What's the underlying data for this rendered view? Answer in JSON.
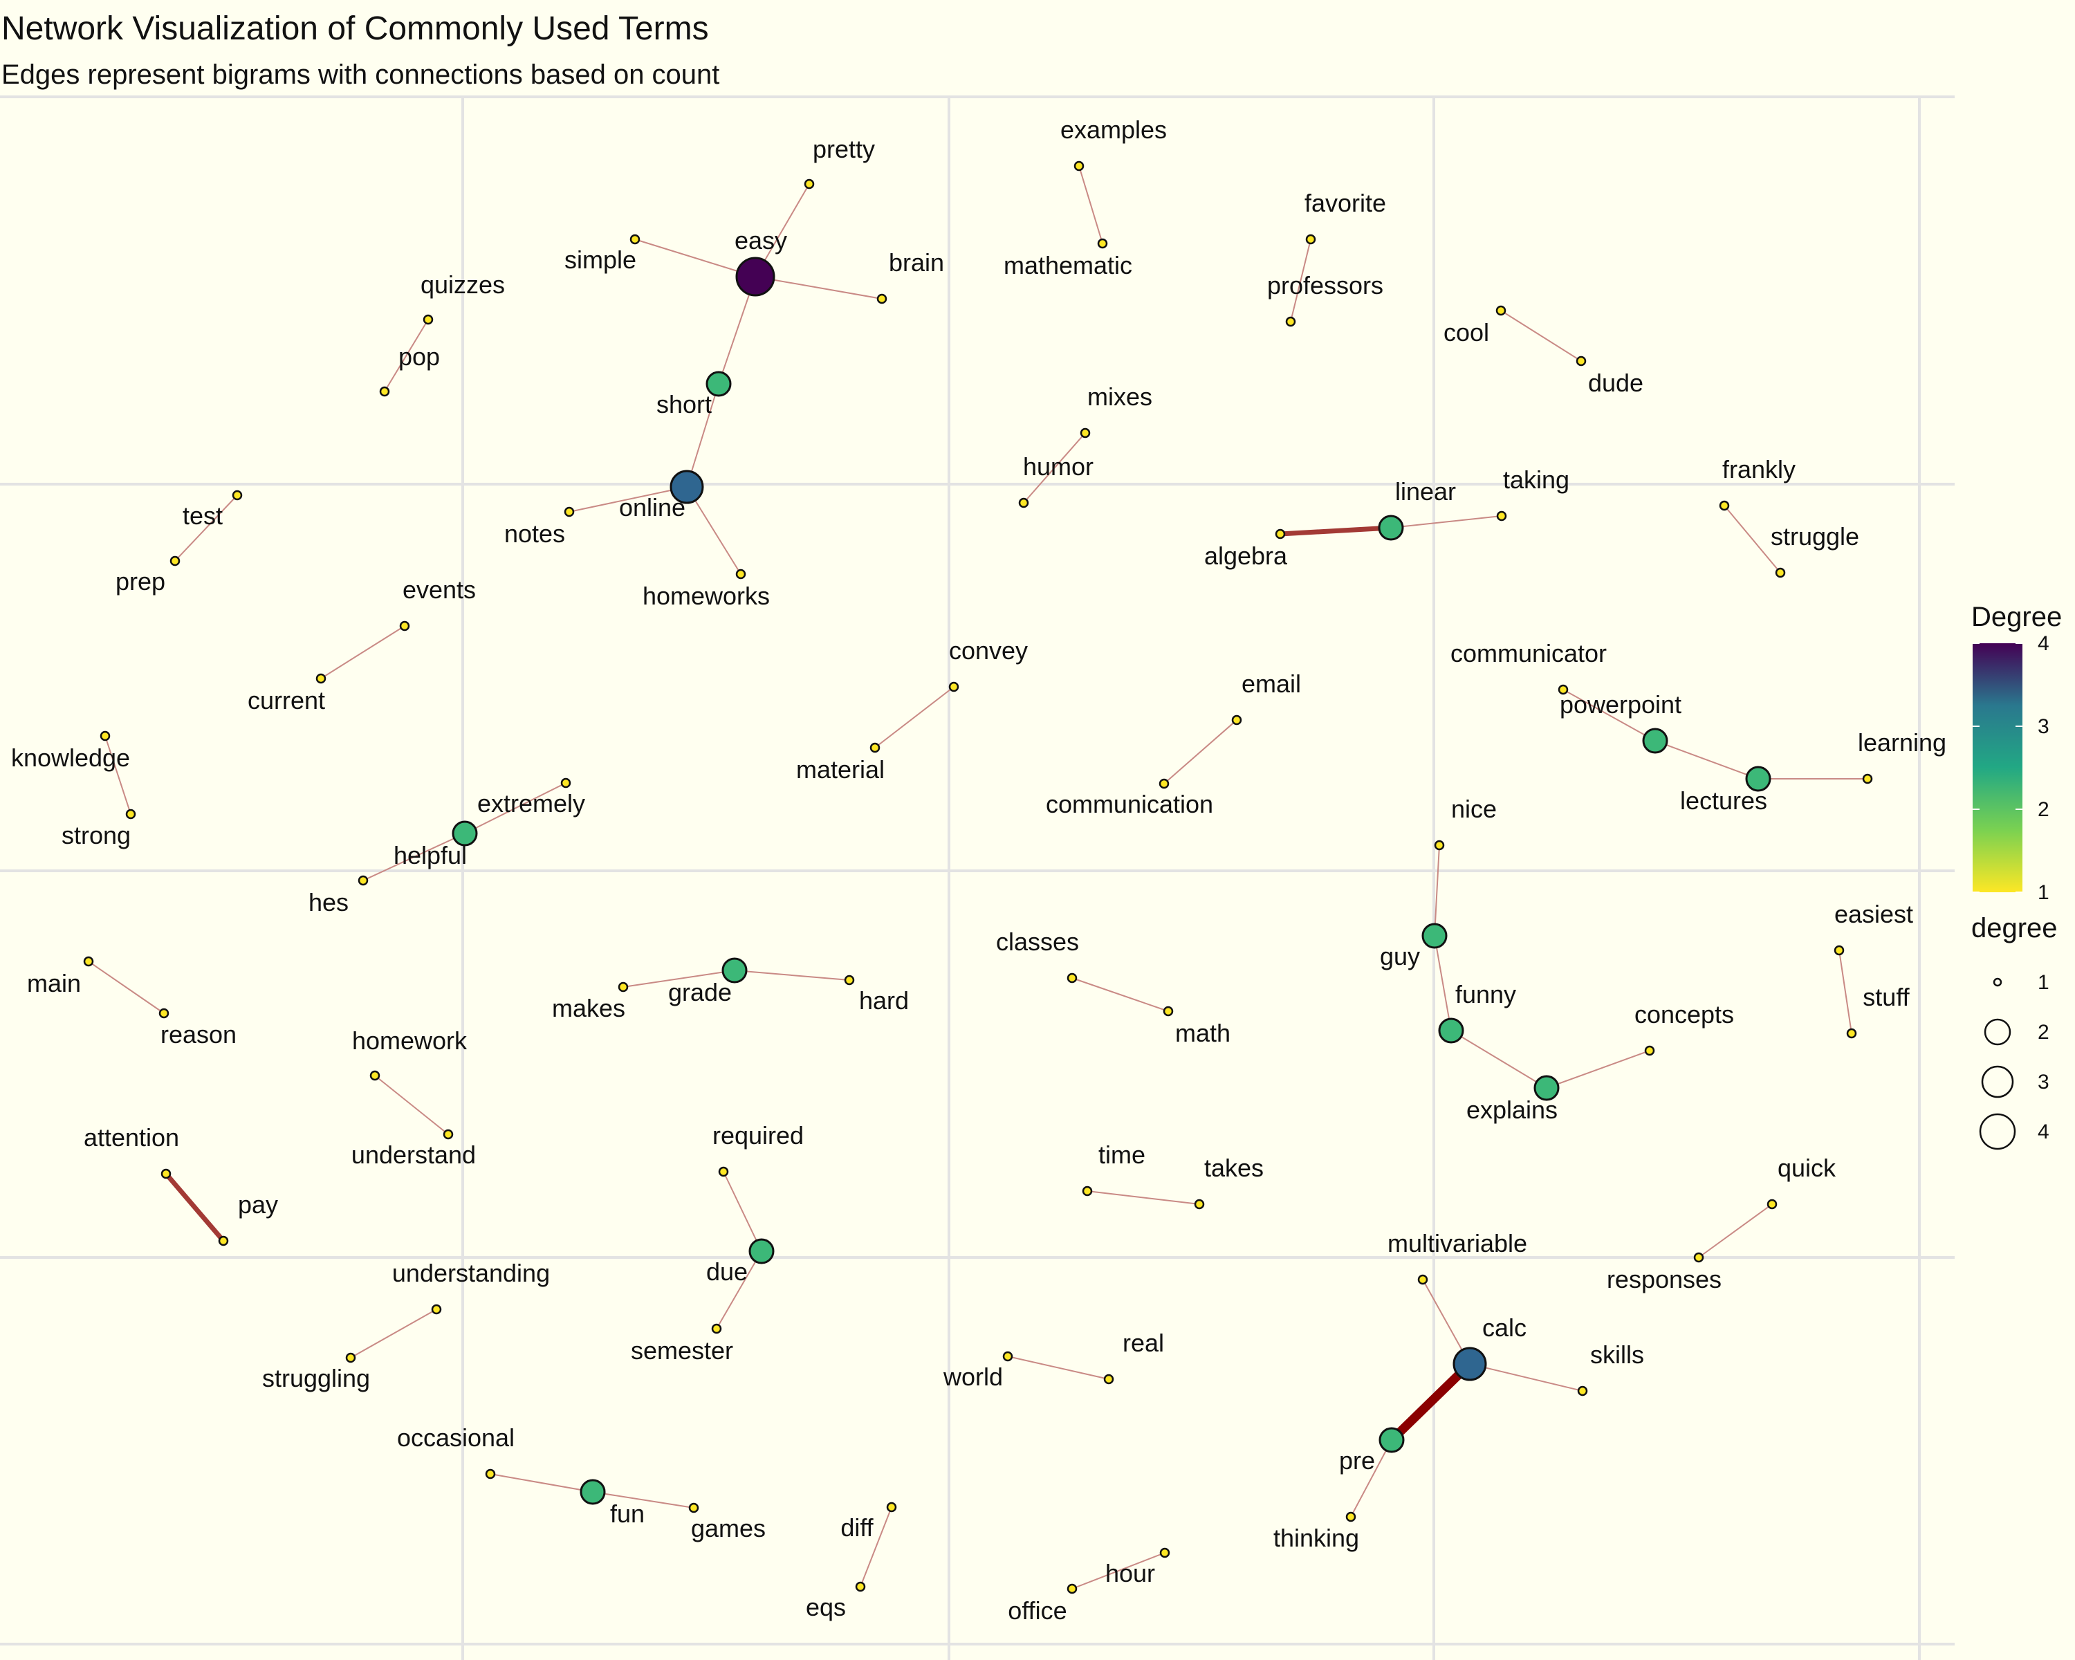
{
  "header": {
    "title": "Network Visualization of Commonly Used Terms",
    "subtitle": "Edges represent bigrams with connections based on count"
  },
  "legend": {
    "color_title": "Degree",
    "color_ticks": [
      "4",
      "3",
      "2",
      "1"
    ],
    "size_title": "degree",
    "size_ticks": [
      "1",
      "2",
      "3",
      "4"
    ],
    "colors": {
      "1": "#fde725",
      "2": "#3cb878",
      "3": "#2f6690",
      "4": "#440154"
    }
  },
  "graph": {
    "nodes": [
      {
        "id": "easy",
        "label": "easy",
        "degree": 4
      },
      {
        "id": "pretty",
        "label": "pretty",
        "degree": 1
      },
      {
        "id": "simple",
        "label": "simple",
        "degree": 1
      },
      {
        "id": "brain",
        "label": "brain",
        "degree": 1
      },
      {
        "id": "short",
        "label": "short",
        "degree": 2
      },
      {
        "id": "online",
        "label": "online",
        "degree": 3
      },
      {
        "id": "notes",
        "label": "notes",
        "degree": 1
      },
      {
        "id": "homeworks",
        "label": "homeworks",
        "degree": 1
      },
      {
        "id": "quizzes",
        "label": "quizzes",
        "degree": 1
      },
      {
        "id": "pop",
        "label": "pop",
        "degree": 1
      },
      {
        "id": "examples",
        "label": "examples",
        "degree": 1
      },
      {
        "id": "mathematic",
        "label": "mathematic",
        "degree": 1
      },
      {
        "id": "favorite",
        "label": "favorite",
        "degree": 1
      },
      {
        "id": "professors",
        "label": "professors",
        "degree": 1
      },
      {
        "id": "cool",
        "label": "cool",
        "degree": 1
      },
      {
        "id": "dude",
        "label": "dude",
        "degree": 1
      },
      {
        "id": "mixes",
        "label": "mixes",
        "degree": 1
      },
      {
        "id": "humor",
        "label": "humor",
        "degree": 1
      },
      {
        "id": "test",
        "label": "test",
        "degree": 1
      },
      {
        "id": "prep",
        "label": "prep",
        "degree": 1
      },
      {
        "id": "linear",
        "label": "linear",
        "degree": 2
      },
      {
        "id": "algebra",
        "label": "algebra",
        "degree": 1
      },
      {
        "id": "taking",
        "label": "taking",
        "degree": 1
      },
      {
        "id": "frankly",
        "label": "frankly",
        "degree": 1
      },
      {
        "id": "struggle",
        "label": "struggle",
        "degree": 1
      },
      {
        "id": "events",
        "label": "events",
        "degree": 1
      },
      {
        "id": "current",
        "label": "current",
        "degree": 1
      },
      {
        "id": "convey",
        "label": "convey",
        "degree": 1
      },
      {
        "id": "material",
        "label": "material",
        "degree": 1
      },
      {
        "id": "email",
        "label": "email",
        "degree": 1
      },
      {
        "id": "communication",
        "label": "communication",
        "degree": 1
      },
      {
        "id": "communicator",
        "label": "communicator",
        "degree": 1
      },
      {
        "id": "powerpoint",
        "label": "powerpoint",
        "degree": 2
      },
      {
        "id": "lectures",
        "label": "lectures",
        "degree": 2
      },
      {
        "id": "learning",
        "label": "learning",
        "degree": 1
      },
      {
        "id": "knowledge",
        "label": "knowledge",
        "degree": 1
      },
      {
        "id": "strong",
        "label": "strong",
        "degree": 1
      },
      {
        "id": "extremely",
        "label": "extremely",
        "degree": 1
      },
      {
        "id": "helpful",
        "label": "helpful",
        "degree": 2
      },
      {
        "id": "hes",
        "label": "hes",
        "degree": 1
      },
      {
        "id": "nice",
        "label": "nice",
        "degree": 1
      },
      {
        "id": "guy",
        "label": "guy",
        "degree": 2
      },
      {
        "id": "funny",
        "label": "funny",
        "degree": 2
      },
      {
        "id": "explains",
        "label": "explains",
        "degree": 2
      },
      {
        "id": "concepts",
        "label": "concepts",
        "degree": 1
      },
      {
        "id": "easiest",
        "label": "easiest",
        "degree": 1
      },
      {
        "id": "stuff",
        "label": "stuff",
        "degree": 1
      },
      {
        "id": "main",
        "label": "main",
        "degree": 1
      },
      {
        "id": "reason",
        "label": "reason",
        "degree": 1
      },
      {
        "id": "makes",
        "label": "makes",
        "degree": 1
      },
      {
        "id": "grade",
        "label": "grade",
        "degree": 2
      },
      {
        "id": "hard",
        "label": "hard",
        "degree": 1
      },
      {
        "id": "classes",
        "label": "classes",
        "degree": 1
      },
      {
        "id": "math",
        "label": "math",
        "degree": 1
      },
      {
        "id": "homework",
        "label": "homework",
        "degree": 1
      },
      {
        "id": "understand",
        "label": "understand",
        "degree": 1
      },
      {
        "id": "attention",
        "label": "attention",
        "degree": 1
      },
      {
        "id": "pay",
        "label": "pay",
        "degree": 1
      },
      {
        "id": "required",
        "label": "required",
        "degree": 1
      },
      {
        "id": "due",
        "label": "due",
        "degree": 2
      },
      {
        "id": "semester",
        "label": "semester",
        "degree": 1
      },
      {
        "id": "time",
        "label": "time",
        "degree": 1
      },
      {
        "id": "takes",
        "label": "takes",
        "degree": 1
      },
      {
        "id": "quick",
        "label": "quick",
        "degree": 1
      },
      {
        "id": "responses",
        "label": "responses",
        "degree": 1
      },
      {
        "id": "multivariable",
        "label": "multivariable",
        "degree": 1
      },
      {
        "id": "calc",
        "label": "calc",
        "degree": 3
      },
      {
        "id": "skills",
        "label": "skills",
        "degree": 1
      },
      {
        "id": "pre",
        "label": "pre",
        "degree": 2
      },
      {
        "id": "thinking",
        "label": "thinking",
        "degree": 1
      },
      {
        "id": "understanding",
        "label": "understanding",
        "degree": 1
      },
      {
        "id": "struggling",
        "label": "struggling",
        "degree": 1
      },
      {
        "id": "world",
        "label": "world",
        "degree": 1
      },
      {
        "id": "real",
        "label": "real",
        "degree": 1
      },
      {
        "id": "occasional",
        "label": "occasional",
        "degree": 1
      },
      {
        "id": "fun",
        "label": "fun",
        "degree": 2
      },
      {
        "id": "games",
        "label": "games",
        "degree": 1
      },
      {
        "id": "diff",
        "label": "diff",
        "degree": 1
      },
      {
        "id": "eqs",
        "label": "eqs",
        "degree": 1
      },
      {
        "id": "office",
        "label": "office",
        "degree": 1
      },
      {
        "id": "hour",
        "label": "hour",
        "degree": 1
      }
    ],
    "edges": [
      {
        "from": "easy",
        "to": "pretty",
        "weight": 1
      },
      {
        "from": "easy",
        "to": "simple",
        "weight": 1
      },
      {
        "from": "easy",
        "to": "brain",
        "weight": 1
      },
      {
        "from": "easy",
        "to": "short",
        "weight": 1
      },
      {
        "from": "short",
        "to": "online",
        "weight": 1
      },
      {
        "from": "online",
        "to": "notes",
        "weight": 1
      },
      {
        "from": "online",
        "to": "homeworks",
        "weight": 1
      },
      {
        "from": "quizzes",
        "to": "pop",
        "weight": 1
      },
      {
        "from": "examples",
        "to": "mathematic",
        "weight": 1
      },
      {
        "from": "favorite",
        "to": "professors",
        "weight": 1
      },
      {
        "from": "cool",
        "to": "dude",
        "weight": 1
      },
      {
        "from": "mixes",
        "to": "humor",
        "weight": 1
      },
      {
        "from": "test",
        "to": "prep",
        "weight": 1
      },
      {
        "from": "linear",
        "to": "algebra",
        "weight": 2
      },
      {
        "from": "linear",
        "to": "taking",
        "weight": 1
      },
      {
        "from": "frankly",
        "to": "struggle",
        "weight": 1
      },
      {
        "from": "events",
        "to": "current",
        "weight": 1
      },
      {
        "from": "convey",
        "to": "material",
        "weight": 1
      },
      {
        "from": "email",
        "to": "communication",
        "weight": 1
      },
      {
        "from": "communicator",
        "to": "powerpoint",
        "weight": 1
      },
      {
        "from": "powerpoint",
        "to": "lectures",
        "weight": 1
      },
      {
        "from": "lectures",
        "to": "learning",
        "weight": 1
      },
      {
        "from": "knowledge",
        "to": "strong",
        "weight": 1
      },
      {
        "from": "extremely",
        "to": "helpful",
        "weight": 1
      },
      {
        "from": "helpful",
        "to": "hes",
        "weight": 1
      },
      {
        "from": "nice",
        "to": "guy",
        "weight": 1
      },
      {
        "from": "guy",
        "to": "funny",
        "weight": 1
      },
      {
        "from": "funny",
        "to": "explains",
        "weight": 1
      },
      {
        "from": "explains",
        "to": "concepts",
        "weight": 1
      },
      {
        "from": "easiest",
        "to": "stuff",
        "weight": 1
      },
      {
        "from": "main",
        "to": "reason",
        "weight": 1
      },
      {
        "from": "makes",
        "to": "grade",
        "weight": 1
      },
      {
        "from": "grade",
        "to": "hard",
        "weight": 1
      },
      {
        "from": "classes",
        "to": "math",
        "weight": 1
      },
      {
        "from": "homework",
        "to": "understand",
        "weight": 1
      },
      {
        "from": "attention",
        "to": "pay",
        "weight": 2
      },
      {
        "from": "required",
        "to": "due",
        "weight": 1
      },
      {
        "from": "due",
        "to": "semester",
        "weight": 1
      },
      {
        "from": "time",
        "to": "takes",
        "weight": 1
      },
      {
        "from": "quick",
        "to": "responses",
        "weight": 1
      },
      {
        "from": "multivariable",
        "to": "calc",
        "weight": 1
      },
      {
        "from": "calc",
        "to": "skills",
        "weight": 1
      },
      {
        "from": "calc",
        "to": "pre",
        "weight": 3
      },
      {
        "from": "pre",
        "to": "thinking",
        "weight": 1
      },
      {
        "from": "understanding",
        "to": "struggling",
        "weight": 1
      },
      {
        "from": "world",
        "to": "real",
        "weight": 1
      },
      {
        "from": "occasional",
        "to": "fun",
        "weight": 1
      },
      {
        "from": "fun",
        "to": "games",
        "weight": 1
      },
      {
        "from": "diff",
        "to": "eqs",
        "weight": 1
      },
      {
        "from": "office",
        "to": "hour",
        "weight": 1
      }
    ]
  }
}
